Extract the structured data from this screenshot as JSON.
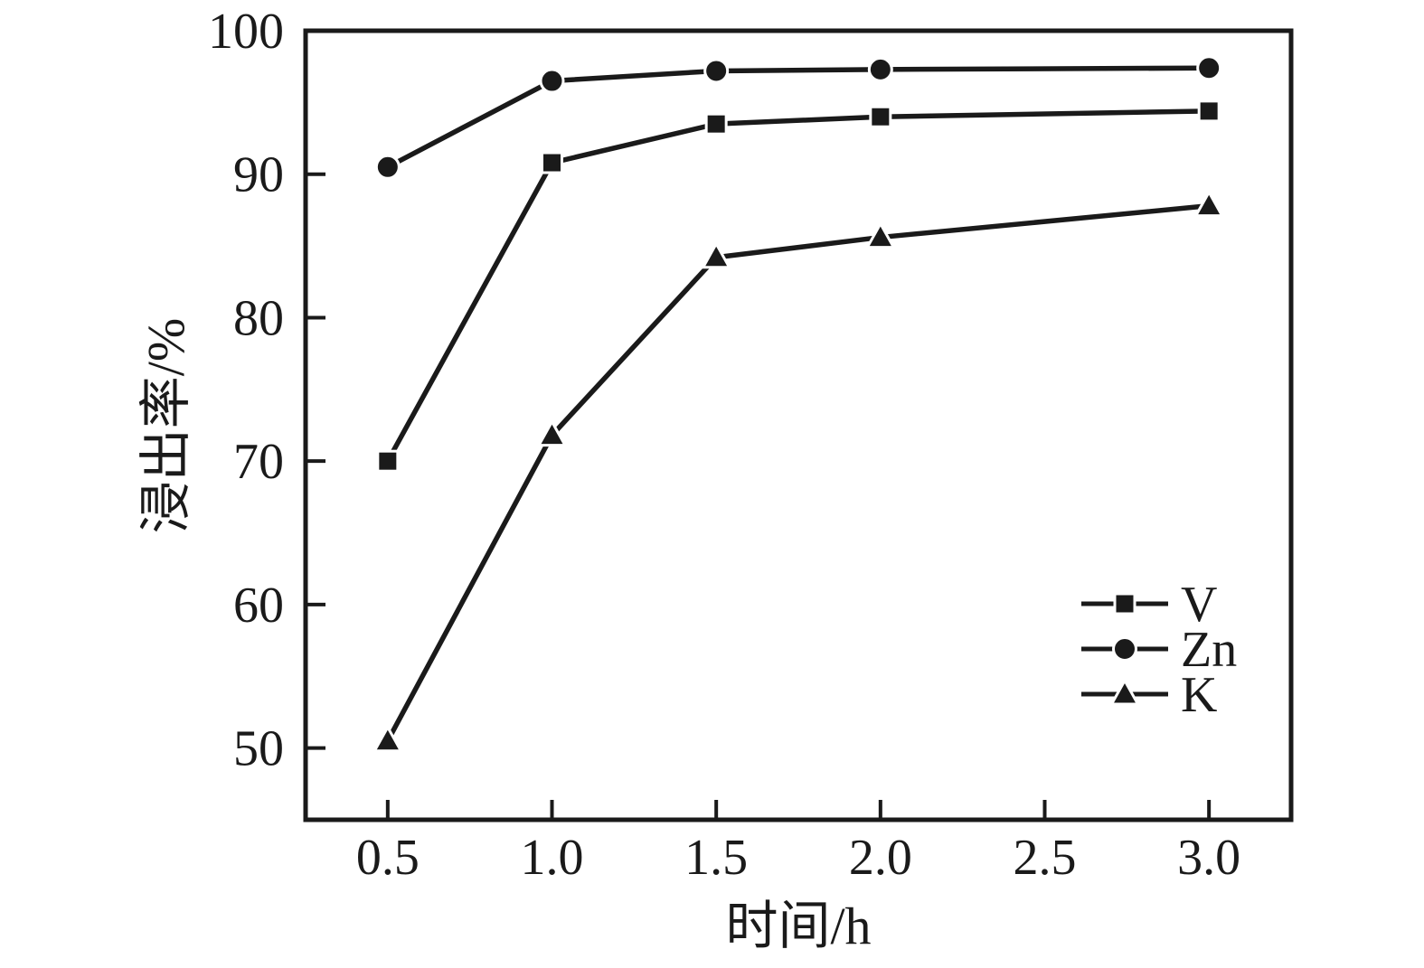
{
  "figure": {
    "background_color": "#ffffff",
    "ink_color": "#1a1a1a"
  },
  "chart_data": {
    "type": "line",
    "title": "",
    "xlabel": "时间/h",
    "ylabel": "浸出率/%",
    "x": [
      0.5,
      1.0,
      1.5,
      2.0,
      3.0
    ],
    "series": [
      {
        "name": "V",
        "marker": "square",
        "values": [
          70.0,
          90.8,
          93.5,
          94.0,
          94.4
        ]
      },
      {
        "name": "Zn",
        "marker": "circle",
        "values": [
          90.5,
          96.5,
          97.2,
          97.3,
          97.4
        ]
      },
      {
        "name": "K",
        "marker": "triangle",
        "values": [
          50.5,
          71.8,
          84.2,
          85.6,
          87.8
        ]
      }
    ],
    "xticks": [
      0.5,
      1.0,
      1.5,
      2.0,
      2.5,
      3.0
    ],
    "xtick_labels": [
      "0.5",
      "1.0",
      "1.5",
      "2.0",
      "2.5",
      "3.0"
    ],
    "yticks": [
      50,
      60,
      70,
      80,
      90,
      100
    ],
    "ytick_labels": [
      "50",
      "60",
      "70",
      "80",
      "90",
      "100"
    ],
    "xlim": [
      0.25,
      3.25
    ],
    "ylim": [
      45,
      100
    ],
    "grid": false,
    "legend_position": "lower right",
    "legend_entries": [
      "V",
      "Zn",
      "K"
    ],
    "line_color": "#1a1a1a"
  }
}
